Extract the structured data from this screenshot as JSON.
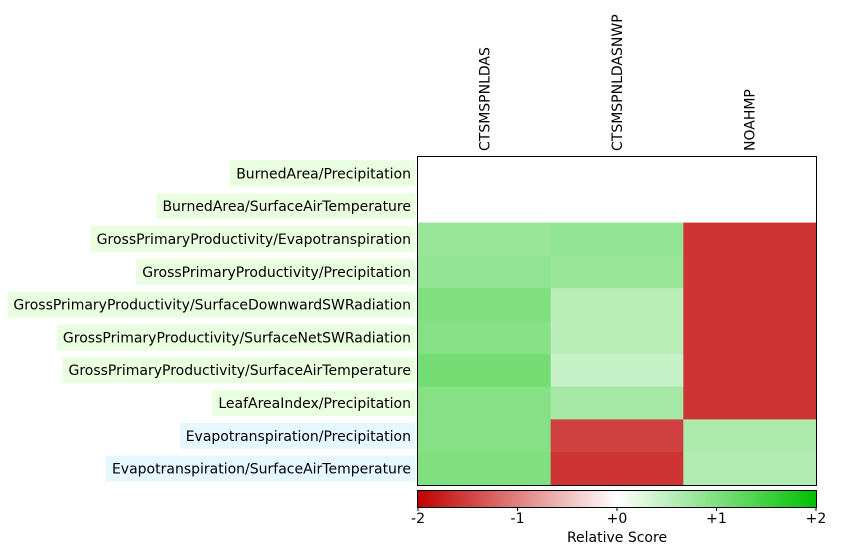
{
  "chart_data": {
    "type": "heatmap",
    "columns": [
      "CTSMSPNLDAS",
      "CTSMSPNLDASNWP",
      "NOAHMP"
    ],
    "rows": [
      {
        "label": "BurnedArea/Precipitation",
        "group": "green"
      },
      {
        "label": "BurnedArea/SurfaceAirTemperature",
        "group": "green"
      },
      {
        "label": "GrossPrimaryProductivity/Evapotranspiration",
        "group": "green"
      },
      {
        "label": "GrossPrimaryProductivity/Precipitation",
        "group": "green"
      },
      {
        "label": "GrossPrimaryProductivity/SurfaceDownwardSWRadiation",
        "group": "green"
      },
      {
        "label": "GrossPrimaryProductivity/SurfaceNetSWRadiation",
        "group": "green"
      },
      {
        "label": "GrossPrimaryProductivity/SurfaceAirTemperature",
        "group": "green"
      },
      {
        "label": "LeafAreaIndex/Precipitation",
        "group": "green"
      },
      {
        "label": "Evapotranspiration/Precipitation",
        "group": "blue"
      },
      {
        "label": "Evapotranspiration/SurfaceAirTemperature",
        "group": "blue"
      }
    ],
    "values": [
      [
        null,
        null,
        null
      ],
      [
        null,
        null,
        null
      ],
      [
        0.8,
        0.85,
        -1.6
      ],
      [
        0.85,
        0.8,
        -1.6
      ],
      [
        1.0,
        0.55,
        -1.6
      ],
      [
        0.95,
        0.55,
        -1.6
      ],
      [
        1.1,
        0.45,
        -1.6
      ],
      [
        0.95,
        0.7,
        -1.6
      ],
      [
        0.95,
        -1.5,
        0.65
      ],
      [
        1.0,
        -1.6,
        0.6
      ]
    ],
    "colorbar": {
      "min": -2,
      "max": 2,
      "ticks": [
        "-2",
        "-1",
        "+0",
        "+1",
        "+2"
      ],
      "label": "Relative Score",
      "colors": [
        "#c00000",
        "#ffffff",
        "#00c000"
      ]
    },
    "label_backgrounds": {
      "green": "#eaffe0",
      "blue": "#e6f7ff"
    }
  }
}
